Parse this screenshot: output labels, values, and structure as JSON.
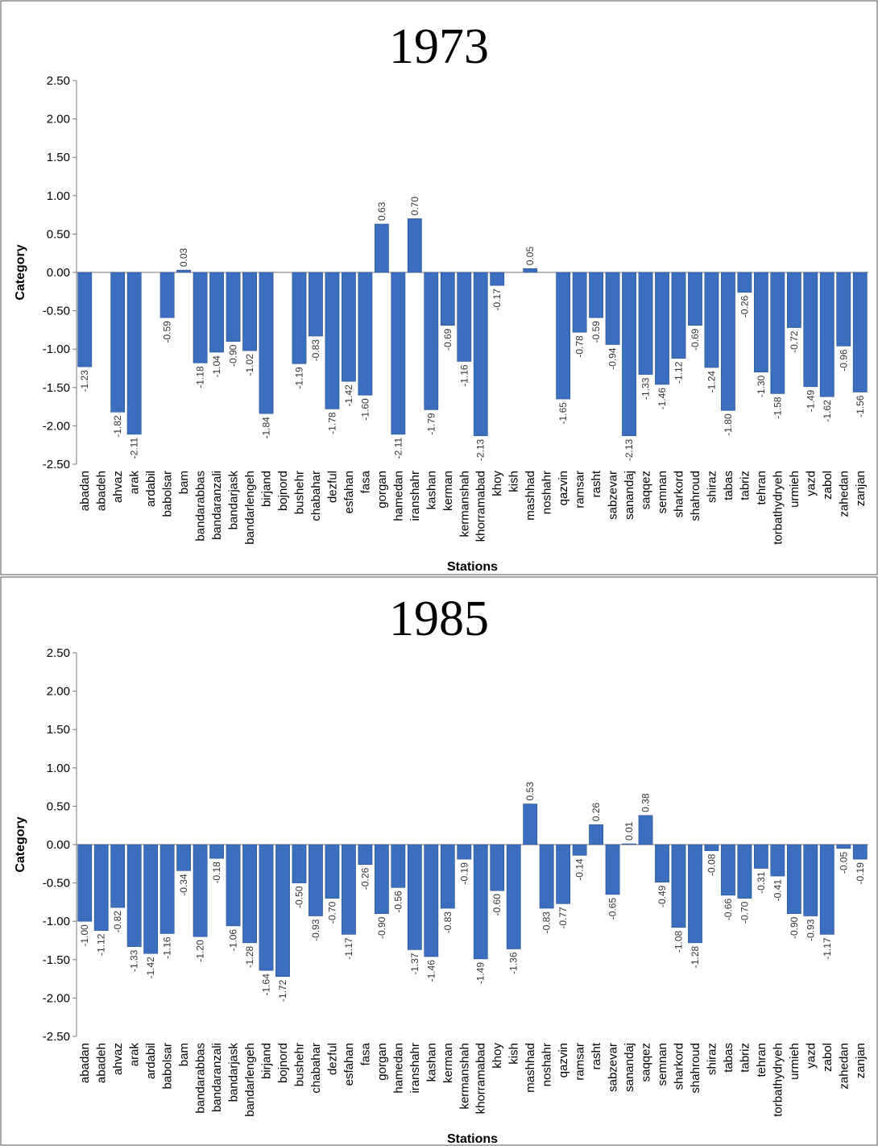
{
  "chart_data": [
    {
      "type": "bar",
      "title": "1973",
      "x_label": "Stations",
      "y_label": "Category",
      "color": "#3a6fbf",
      "categories": [
        "abadan",
        "abadeh",
        "ahvaz",
        "arak",
        "ardabil",
        "babolsar",
        "bam",
        "bandarabbas",
        "bandaranzali",
        "bandarjask",
        "bandarlengeh",
        "birjand",
        "bojnord",
        "bushehr",
        "chabahar",
        "dezful",
        "esfahan",
        "fasa",
        "gorgan",
        "hamedan",
        "iranshahr",
        "kashan",
        "kerman",
        "kermanshah",
        "khorramabad",
        "khoy",
        "kish",
        "mashhad",
        "noshahr",
        "qazvin",
        "ramsar",
        "rasht",
        "sabzevar",
        "sanandaj",
        "saqqez",
        "semnan",
        "sharkord",
        "shahroud",
        "shiraz",
        "tabas",
        "tabriz",
        "tehran",
        "torbathydryeh",
        "urmieh",
        "yazd",
        "zabol",
        "zahedan",
        "zanjan"
      ],
      "values": [
        -1.23,
        null,
        -1.82,
        -2.11,
        null,
        -0.59,
        0.03,
        -1.18,
        -1.04,
        -0.9,
        -1.02,
        -1.84,
        null,
        -1.19,
        -0.83,
        -1.78,
        -1.42,
        -1.6,
        0.63,
        -2.11,
        0.7,
        -1.79,
        -0.69,
        -1.16,
        -2.13,
        -0.17,
        null,
        0.05,
        null,
        -1.65,
        -0.78,
        -0.59,
        -0.94,
        -2.13,
        -1.33,
        -1.46,
        -1.12,
        -0.69,
        -1.24,
        -1.8,
        -0.26,
        -1.3,
        -1.58,
        -0.72,
        -1.49,
        -1.62,
        -0.96,
        -1.56
      ],
      "value_labels": [
        "-1.23",
        null,
        "-1.82",
        "-2.11",
        null,
        "-0.59",
        "0.03",
        "-1.18",
        "-1.04",
        "-0.90",
        "-1.02",
        "-1.84",
        null,
        "-1.19",
        "-0.83",
        "-1.78",
        "-1.42",
        "-1.60",
        "0.63",
        "-2.11",
        "0.70",
        "-1.79",
        "-0.69",
        "-1.16",
        "-2.13",
        "-0.17",
        null,
        "0.05",
        null,
        "-1.65",
        "-0.78",
        "-0.59",
        "-0.94",
        "-2.13",
        "-1.33",
        "-1.46",
        "-1.12",
        "-0.69",
        "-1.24",
        "-1.80",
        "-0.26",
        "-1.30",
        "-1.58",
        "-0.72",
        "-1.49",
        "-1.62",
        "-0.96",
        "-1.56"
      ],
      "ylim": [
        -2.5,
        2.5
      ],
      "yticks": [
        {
          "value": -2.5,
          "label": "-2.50"
        },
        {
          "value": -2,
          "label": "-2.00"
        },
        {
          "value": -1.5,
          "label": "-1.50"
        },
        {
          "value": -1,
          "label": "-1.00"
        },
        {
          "value": -0.5,
          "label": "-0.50"
        },
        {
          "value": 0,
          "label": "0.00"
        },
        {
          "value": 0.5,
          "label": "0.50"
        },
        {
          "value": 1,
          "label": "1.00"
        },
        {
          "value": 1.5,
          "label": "1.50"
        },
        {
          "value": 2,
          "label": "2.00"
        },
        {
          "value": 2.5,
          "label": "2.50"
        }
      ],
      "grid": false
    },
    {
      "type": "bar",
      "title": "1985",
      "x_label": "Stations",
      "y_label": "Category",
      "color": "#3a6fbf",
      "categories": [
        "abadan",
        "abadeh",
        "ahvaz",
        "arak",
        "ardabil",
        "babolsar",
        "bam",
        "bandarabbas",
        "bandaranzali",
        "bandarjask",
        "bandarlengeh",
        "birjand",
        "bojnord",
        "bushehr",
        "chabahar",
        "dezful",
        "esfahan",
        "fasa",
        "gorgan",
        "hamedan",
        "iranshahr",
        "kashan",
        "kerman",
        "kermanshah",
        "khorramabad",
        "khoy",
        "kish",
        "mashhad",
        "noshahr",
        "qazvin",
        "ramsar",
        "rasht",
        "sabzevar",
        "sanandaj",
        "saqqez",
        "semnan",
        "sharkord",
        "shahroud",
        "shiraz",
        "tabas",
        "tabriz",
        "tehran",
        "torbathydryeh",
        "urmieh",
        "yazd",
        "zabol",
        "zahedan",
        "zanjan"
      ],
      "values": [
        -1,
        -1.12,
        -0.82,
        -1.33,
        -1.42,
        -1.16,
        -0.34,
        -1.2,
        -0.18,
        -1.06,
        -1.28,
        -1.64,
        -1.72,
        -0.5,
        -0.93,
        -0.7,
        -1.17,
        -0.26,
        -0.9,
        -0.56,
        -1.37,
        -1.46,
        -0.83,
        -0.19,
        -1.49,
        -0.6,
        -1.36,
        0.53,
        -0.83,
        -0.77,
        -0.14,
        0.26,
        -0.65,
        0.01,
        0.38,
        -0.49,
        -1.08,
        -1.28,
        -0.08,
        -0.66,
        -0.7,
        -0.31,
        -0.41,
        -0.9,
        -0.93,
        -1.17,
        -0.05,
        -0.19
      ],
      "value_labels": [
        "-1.00",
        "-1.12",
        "-0.82",
        "-1.33",
        "-1.42",
        "-1.16",
        "-0.34",
        "-1.20",
        "-0.18",
        "-1.06",
        "-1.28",
        "-1.64",
        "-1.72",
        "-0.50",
        "-0.93",
        "-0.70",
        "-1.17",
        "-0.26",
        "-0.90",
        "-0.56",
        "-1.37",
        "-1.46",
        "-0.83",
        "-0.19",
        "-1.49",
        "-0.60",
        "-1.36",
        "0.53",
        "-0.83",
        "-0.77",
        "-0.14",
        "0.26",
        "-0.65",
        "0.01",
        "0.38",
        "-0.49",
        "-1.08",
        "-1.28",
        "-0.08",
        "-0.66",
        "-0.70",
        "-0.31",
        "-0.41",
        "-0.90",
        "-0.93",
        "-1.17",
        "-0.05",
        "-0.19"
      ],
      "ylim": [
        -2.5,
        2.5
      ],
      "yticks": [
        {
          "value": -2.5,
          "label": "-2.50"
        },
        {
          "value": -2,
          "label": "-2.00"
        },
        {
          "value": -1.5,
          "label": "-1.50"
        },
        {
          "value": -1,
          "label": "-1.00"
        },
        {
          "value": -0.5,
          "label": "-0.50"
        },
        {
          "value": 0,
          "label": "0.00"
        },
        {
          "value": 0.5,
          "label": "0.50"
        },
        {
          "value": 1,
          "label": "1.00"
        },
        {
          "value": 1.5,
          "label": "1.50"
        },
        {
          "value": 2,
          "label": "2.00"
        },
        {
          "value": 2.5,
          "label": "2.50"
        }
      ],
      "grid": false
    }
  ]
}
